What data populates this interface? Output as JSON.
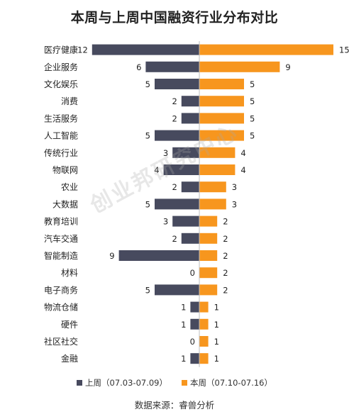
{
  "colors": {
    "last_week": "#474a5e",
    "this_week": "#f7961e",
    "center_line": "#bfbfbf"
  },
  "watermark": "创业邦研究中心",
  "source": "数据来源：睿兽分析",
  "chart_data": {
    "type": "bar",
    "orientation": "horizontal-butterfly",
    "title": "本周与上周中国融资行业分布对比",
    "categories": [
      "医疗健康",
      "企业服务",
      "文化娱乐",
      "消费",
      "生活服务",
      "人工智能",
      "传统行业",
      "物联网",
      "农业",
      "大数据",
      "教育培训",
      "汽车交通",
      "智能制造",
      "材料",
      "电子商务",
      "物流仓储",
      "硬件",
      "社区社交",
      "金融"
    ],
    "series": [
      {
        "name": "上周（07.03-07.09）",
        "values": [
          12,
          6,
          5,
          2,
          2,
          5,
          3,
          4,
          2,
          5,
          3,
          2,
          9,
          0,
          5,
          1,
          1,
          0,
          1
        ]
      },
      {
        "name": "本周（07.10-07.16）",
        "values": [
          15,
          9,
          5,
          5,
          5,
          5,
          4,
          4,
          3,
          3,
          2,
          2,
          2,
          2,
          2,
          1,
          1,
          1,
          1
        ]
      }
    ],
    "legend_position": "bottom",
    "grid": false
  }
}
